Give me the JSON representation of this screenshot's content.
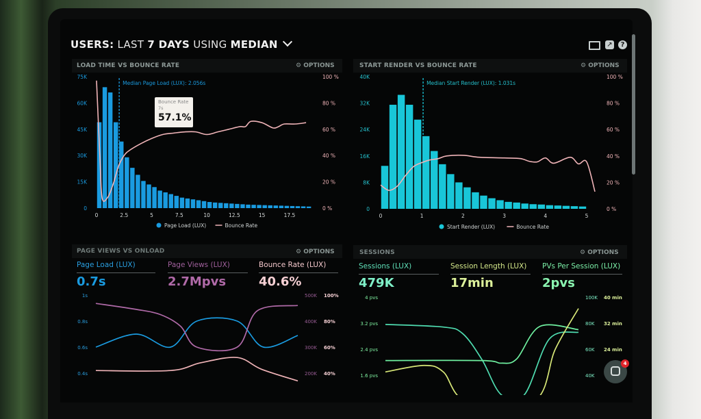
{
  "header": {
    "parts": [
      "USERS:",
      "LAST",
      "7 DAYS",
      "USING",
      "MEDIAN"
    ],
    "icons": [
      "monitor-icon",
      "share-icon",
      "help-icon"
    ]
  },
  "options_label": "OPTIONS",
  "colors": {
    "blue": "#1a9be0",
    "cyan": "#19c6d8",
    "pink": "#f0b4b8",
    "purple": "#b06aa8",
    "teal": "#4fdcb0",
    "green": "#6ff0a0",
    "yellow": "#d8e878"
  },
  "panels": [
    {
      "title": "LOAD TIME VS BOUNCE RATE"
    },
    {
      "title": "START RENDER VS BOUNCE RATE"
    },
    {
      "title": "PAGE VIEWS VS ONLOAD",
      "kpis": [
        {
          "label": "Page Load (LUX)",
          "value": "0.7s"
        },
        {
          "label": "Page Views (LUX)",
          "value": "2.7Mpvs"
        },
        {
          "label": "Bounce Rate (LUX)",
          "value": "40.6%"
        }
      ]
    },
    {
      "title": "SESSIONS",
      "kpis": [
        {
          "label": "Sessions (LUX)",
          "value": "479K"
        },
        {
          "label": "Session Length (LUX)",
          "value": "17min"
        },
        {
          "label": "PVs Per Session (LUX)",
          "value": "2pvs"
        }
      ]
    }
  ],
  "tooltip": {
    "series": "Bounce Rate",
    "x": "7s",
    "value": "57.1%"
  },
  "chat": {
    "badge": "4"
  },
  "chart_data": [
    {
      "type": "bar",
      "title": "LOAD TIME VS BOUNCE RATE",
      "x_ticks": [
        "0",
        "2.5",
        "5",
        "7.5",
        "10",
        "12.5",
        "15",
        "17.5"
      ],
      "y_ticks": [
        "0",
        "15K",
        "30K",
        "45K",
        "60K",
        "75K"
      ],
      "y2_ticks": [
        "0 %",
        "20 %",
        "40 %",
        "60 %",
        "80 %",
        "100 %"
      ],
      "xlim": [
        0,
        19.5
      ],
      "ylim": [
        0,
        75000
      ],
      "y2lim": [
        0,
        100
      ],
      "median": {
        "label": "Median Page Load (LUX): 2.056s",
        "x": 2.056
      },
      "legend": [
        "Page Load (LUX)",
        "Bounce Rate"
      ],
      "bars": {
        "name": "Page Load (LUX)",
        "bin_width": 0.5,
        "x": [
          0,
          0.5,
          1,
          1.5,
          2,
          2.5,
          3,
          3.5,
          4,
          4.5,
          5,
          5.5,
          6,
          6.5,
          7,
          7.5,
          8,
          8.5,
          9,
          9.5,
          10,
          10.5,
          11,
          11.5,
          12,
          12.5,
          13,
          13.5,
          14,
          14.5,
          15,
          15.5,
          16,
          16.5,
          17,
          17.5,
          18,
          18.5,
          19
        ],
        "values": [
          49000,
          69000,
          66000,
          49000,
          38000,
          29000,
          23000,
          19000,
          15500,
          13500,
          12000,
          10000,
          9000,
          8000,
          7000,
          6000,
          5500,
          5000,
          4500,
          4000,
          3500,
          3200,
          3000,
          2800,
          2600,
          2400,
          2200,
          2000,
          1900,
          1800,
          1700,
          1600,
          1500,
          1400,
          1300,
          1200,
          1100,
          1000,
          900
        ]
      },
      "line": {
        "name": "Bounce Rate",
        "x": [
          0,
          0.3,
          0.5,
          1,
          1.5,
          2,
          2.5,
          3,
          4,
          5,
          6,
          7,
          8,
          9,
          10,
          11,
          12,
          13,
          13.5,
          14,
          15,
          16,
          16.5,
          17,
          18,
          19
        ],
        "values": [
          97,
          40,
          8,
          8,
          18,
          32,
          40,
          44,
          49,
          53,
          56,
          57.1,
          58,
          58,
          56,
          58,
          60,
          62,
          62,
          66,
          65,
          61,
          62,
          64,
          64,
          65
        ]
      }
    },
    {
      "type": "bar",
      "title": "START RENDER VS BOUNCE RATE",
      "x_ticks": [
        "0",
        "1",
        "2",
        "3",
        "4",
        "5"
      ],
      "y_ticks": [
        "0",
        "8K",
        "16K",
        "24K",
        "32K",
        "40K"
      ],
      "y2_ticks": [
        "0 %",
        "20 %",
        "40 %",
        "60 %",
        "80 %",
        "100 %"
      ],
      "xlim": [
        0,
        5.2
      ],
      "ylim": [
        0,
        40000
      ],
      "y2lim": [
        0,
        100
      ],
      "median": {
        "label": "Median Start Render (LUX): 1.031s",
        "x": 1.031
      },
      "legend": [
        "Start Render (LUX)",
        "Bounce Rate"
      ],
      "bars": {
        "name": "Start Render (LUX)",
        "bin_width": 0.2,
        "x": [
          0.1,
          0.3,
          0.5,
          0.7,
          0.9,
          1.1,
          1.3,
          1.5,
          1.7,
          1.9,
          2.1,
          2.3,
          2.5,
          2.7,
          2.9,
          3.1,
          3.3,
          3.5,
          3.7,
          3.9,
          4.1,
          4.3,
          4.5,
          4.7,
          4.9
        ],
        "values": [
          13000,
          31500,
          34500,
          31500,
          27000,
          22000,
          17500,
          13500,
          10500,
          8000,
          6500,
          5000,
          4000,
          3200,
          2600,
          2100,
          1900,
          1600,
          1400,
          1300,
          1100,
          1000,
          900,
          800,
          700
        ]
      },
      "line": {
        "name": "Bounce Rate",
        "x": [
          0,
          0.2,
          0.4,
          0.6,
          0.8,
          1,
          1.2,
          1.4,
          1.6,
          2,
          2.4,
          3,
          3.4,
          3.6,
          3.8,
          4,
          4.2,
          4.6,
          4.8,
          5,
          5.2
        ],
        "values": [
          18,
          14,
          17,
          25,
          32,
          35,
          37,
          38,
          40,
          40.5,
          39,
          38.5,
          38,
          36,
          35.5,
          38.5,
          34.5,
          39,
          34,
          35.5,
          13
        ]
      }
    },
    {
      "type": "line",
      "title": "PAGE VIEWS VS ONLOAD",
      "y_ticks": [
        "0.4s",
        "0.6s",
        "0.8s",
        "1s"
      ],
      "y2_ticks": [
        "200K",
        "300K",
        "400K",
        "500K"
      ],
      "y3_ticks": [
        "40%",
        "60%",
        "80%",
        "100%"
      ],
      "series": [
        {
          "name": "Page Load (LUX)",
          "axis": "s",
          "range": [
            0.4,
            1
          ],
          "x": [
            0,
            0.2,
            0.37,
            0.5,
            0.7,
            0.83,
            1
          ],
          "values": [
            0.6,
            0.7,
            0.6,
            0.8,
            0.8,
            0.6,
            0.69
          ]
        },
        {
          "name": "Page Views (LUX)",
          "axis": "K",
          "range": [
            200,
            500
          ],
          "x": [
            0,
            0.2,
            0.32,
            0.42,
            0.5,
            0.7,
            0.8,
            1
          ],
          "values": [
            468,
            445,
            425,
            380,
            300,
            300,
            440,
            460
          ]
        },
        {
          "name": "Bounce Rate (LUX)",
          "axis": "%",
          "range": [
            40,
            100
          ],
          "x": [
            0,
            0.37,
            0.52,
            0.7,
            0.82,
            1
          ],
          "values": [
            42,
            42,
            48,
            52,
            43,
            34
          ]
        }
      ]
    },
    {
      "type": "line",
      "title": "SESSIONS",
      "y_ticks": [
        "1.6 pvs",
        "2.4 pvs",
        "3.2 pvs",
        "4 pvs"
      ],
      "y2_ticks": [
        "40K",
        "60K",
        "80K",
        "100K"
      ],
      "y3_ticks": [
        "",
        "24 min",
        "32 min",
        "40 min"
      ],
      "series": [
        {
          "name": "Sessions (LUX)",
          "axis": "K",
          "range": [
            40,
            100
          ],
          "x": [
            0,
            0.3,
            0.4,
            0.5,
            0.6,
            0.72,
            0.85,
            1
          ],
          "values": [
            79,
            77,
            72,
            52,
            25,
            25,
            68,
            73
          ]
        },
        {
          "name": "PVs Per Session (LUX)",
          "axis": "pvs",
          "range": [
            1.6,
            4
          ],
          "x": [
            0,
            0.5,
            0.6,
            0.68,
            0.8,
            1
          ],
          "values": [
            2.05,
            2.05,
            1.97,
            2.1,
            3.1,
            3.0
          ]
        },
        {
          "name": "Session Length (LUX)",
          "axis": "min",
          "range": [
            16,
            40
          ],
          "x": [
            0,
            0.2,
            0.3,
            0.42,
            0.77,
            0.88,
            1
          ],
          "values": [
            17,
            19,
            17,
            8,
            8,
            24,
            36.5
          ]
        }
      ]
    }
  ]
}
